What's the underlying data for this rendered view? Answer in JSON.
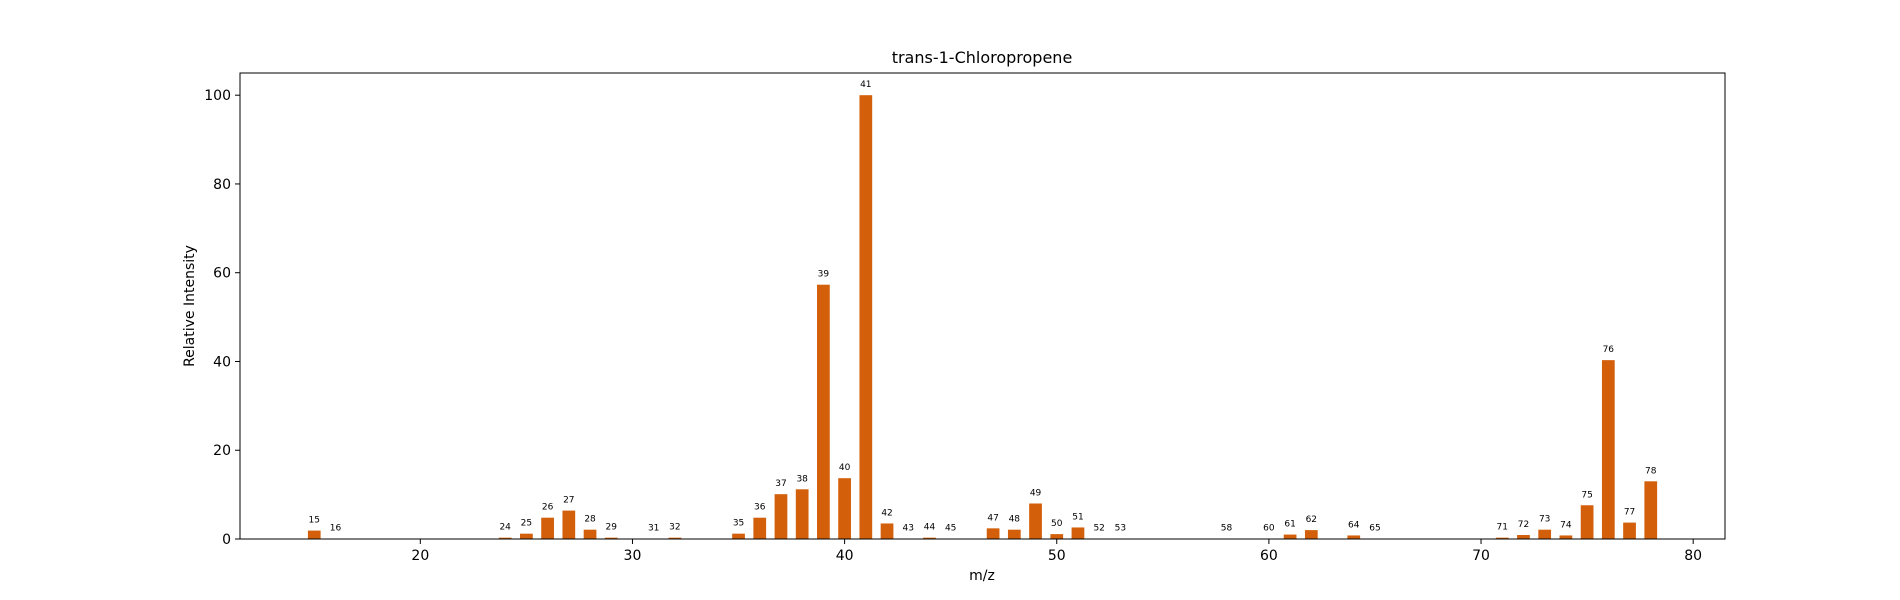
{
  "chart_data": {
    "type": "bar",
    "title": "trans-1-Chloropropene",
    "xlabel": "m/z",
    "ylabel": "Relative Intensity",
    "xlim": [
      11.5,
      81.5
    ],
    "ylim": [
      0,
      105
    ],
    "xticks": [
      20,
      30,
      40,
      50,
      60,
      70,
      80
    ],
    "yticks": [
      0,
      20,
      40,
      60,
      80,
      100
    ],
    "grid": false,
    "bar_color": "#d35f0a",
    "x": [
      15,
      16,
      24,
      25,
      26,
      27,
      28,
      29,
      31,
      32,
      35,
      36,
      37,
      38,
      39,
      40,
      41,
      42,
      43,
      44,
      45,
      47,
      48,
      49,
      50,
      51,
      52,
      53,
      58,
      60,
      61,
      62,
      64,
      65,
      71,
      72,
      73,
      74,
      75,
      76,
      77,
      78
    ],
    "values": [
      1.9,
      0.1,
      0.3,
      1.2,
      4.8,
      6.4,
      2.1,
      0.3,
      0.1,
      0.3,
      1.2,
      4.8,
      10.1,
      11.2,
      57.3,
      13.7,
      100,
      3.5,
      0.1,
      0.3,
      0.1,
      2.4,
      2.1,
      8.0,
      1.1,
      2.6,
      0.1,
      0.1,
      0.1,
      0.1,
      1.0,
      2.0,
      0.8,
      0.1,
      0.3,
      0.9,
      2.1,
      0.8,
      7.6,
      40.3,
      3.7,
      13.0
    ],
    "labels": [
      "15",
      "16",
      "24",
      "25",
      "26",
      "27",
      "28",
      "29",
      "31",
      "32",
      "35",
      "36",
      "37",
      "38",
      "39",
      "40",
      "41",
      "42",
      "43",
      "44",
      "45",
      "47",
      "48",
      "49",
      "50",
      "51",
      "52",
      "53",
      "58",
      "60",
      "61",
      "62",
      "64",
      "65",
      "71",
      "72",
      "73",
      "74",
      "75",
      "76",
      "77",
      "78"
    ]
  }
}
